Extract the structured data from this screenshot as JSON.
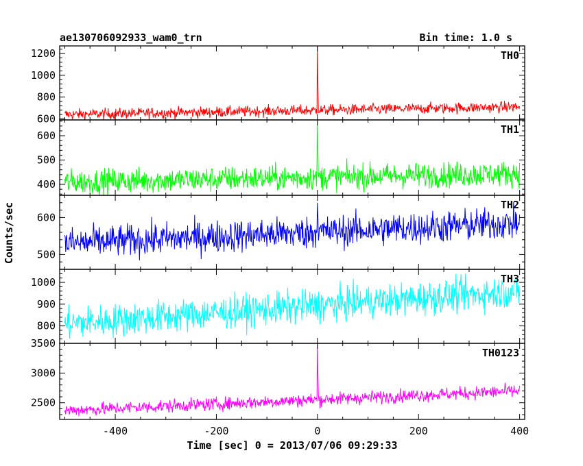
{
  "header": {
    "title": "ae130706092933_wam0_trn",
    "bin_time": "Bin time: 1.0 s"
  },
  "chart_data": {
    "type": "line",
    "title": "ae130706092933_wam0_trn",
    "xlabel": "Time [sec] 0 = 2013/07/06 09:29:33",
    "ylabel": "Counts/sec",
    "xlim": [
      -510,
      410
    ],
    "x_ticks": [
      -400,
      -200,
      0,
      200,
      400
    ],
    "bin_time_s": 1.0,
    "grid": false,
    "panels": [
      {
        "name": "TH0",
        "color": "#ff0000",
        "ylim": [
          590,
          1270
        ],
        "y_ticks": [
          600,
          800,
          1000,
          1200
        ],
        "start": 640,
        "end": 710,
        "noise": 25,
        "spike": {
          "x": 0,
          "peak": 1270
        }
      },
      {
        "name": "TH1",
        "color": "#00ff00",
        "ylim": [
          355,
          665
        ],
        "y_ticks": [
          400,
          500,
          600
        ],
        "start": 410,
        "end": 445,
        "noise": 26,
        "spike": {
          "x": 0,
          "peak": 660
        }
      },
      {
        "name": "TH2",
        "color": "#0000ff",
        "ylim": [
          460,
          660
        ],
        "y_ticks": [
          500,
          600
        ],
        "start": 530,
        "end": 585,
        "noise": 22,
        "spike": {
          "x": 0,
          "peak": 640
        }
      },
      {
        "name": "TH3",
        "color": "#00ffff",
        "ylim": [
          720,
          1060
        ],
        "y_ticks": [
          800,
          900,
          1000
        ],
        "start": 810,
        "end": 960,
        "noise": 38,
        "spike": null
      },
      {
        "name": "TH0123",
        "color": "#ff00ff",
        "ylim": [
          2220,
          3500
        ],
        "y_ticks": [
          2500,
          3000,
          3500
        ],
        "start": 2370,
        "end": 2700,
        "noise": 55,
        "spike": {
          "x": 0,
          "peak": 3480
        }
      }
    ]
  }
}
